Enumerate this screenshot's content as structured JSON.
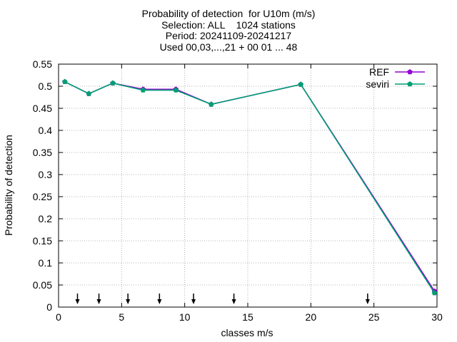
{
  "chart_data": {
    "type": "line",
    "title_lines": [
      "Probability of detection  for U10m (m/s)",
      "Selection: ALL    1024 stations",
      "Period: 20241109-20241217",
      "Used 00,03,...,21 + 00 01 ... 48"
    ],
    "xlabel": "classes m/s",
    "ylabel": "Probability of detection",
    "xlim": [
      0,
      30
    ],
    "ylim": [
      0,
      0.55
    ],
    "xticks": [
      "0",
      "5",
      "10",
      "15",
      "20",
      "25",
      "30"
    ],
    "yticks": [
      "0",
      "0.05",
      "0.1",
      "0.15",
      "0.2",
      "0.25",
      "0.3",
      "0.35",
      "0.4",
      "0.45",
      "0.5",
      "0.55"
    ],
    "grid": true,
    "legend_position": "top-right",
    "series": [
      {
        "name": "REF",
        "color": "#9400d3",
        "x": [
          0.5,
          2.4,
          4.3,
          6.7,
          9.3,
          12.1,
          19.2,
          29.8
        ],
        "y": [
          0.51,
          0.483,
          0.507,
          0.493,
          0.493,
          0.459,
          0.504,
          0.036
        ]
      },
      {
        "name": "seviri",
        "color": "#009e73",
        "x": [
          0.5,
          2.4,
          4.3,
          6.7,
          9.3,
          12.1,
          19.2,
          29.8
        ],
        "y": [
          0.51,
          0.483,
          0.507,
          0.491,
          0.491,
          0.459,
          0.504,
          0.032
        ]
      }
    ],
    "arrows_x": [
      1.5,
      3.2,
      5.5,
      8.0,
      10.7,
      13.9,
      24.5
    ]
  }
}
